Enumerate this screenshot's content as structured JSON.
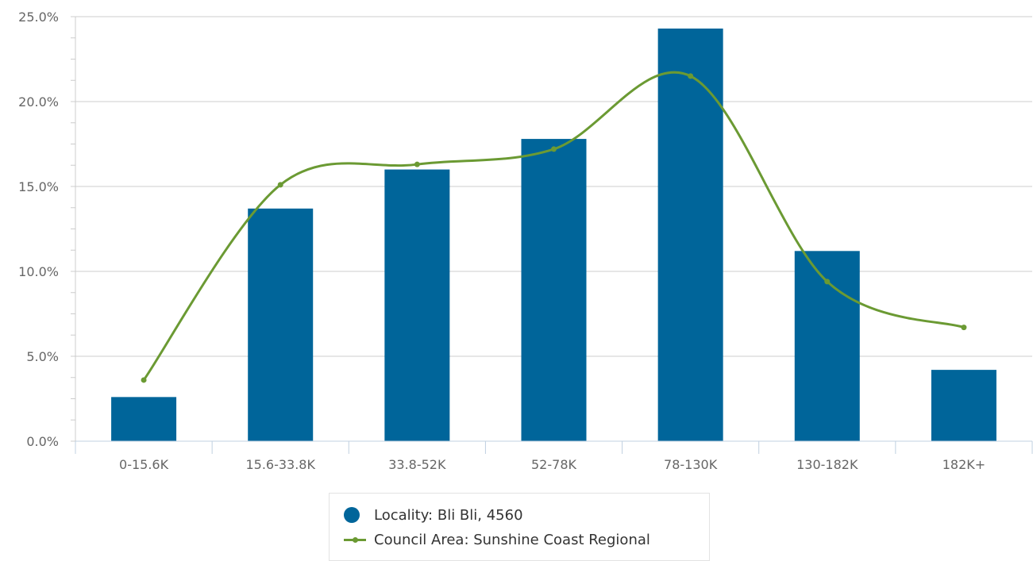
{
  "chart_data": {
    "type": "bar",
    "categories": [
      "0-15.6K",
      "15.6-33.8K",
      "33.8-52K",
      "52-78K",
      "78-130K",
      "130-182K",
      "182K+"
    ],
    "series": [
      {
        "name": "Locality: Bli Bli, 4560",
        "kind": "bar",
        "color": "#00659a",
        "values": [
          2.6,
          13.7,
          16.0,
          17.8,
          24.3,
          11.2,
          4.2
        ]
      },
      {
        "name": "Council Area: Sunshine Coast Regional",
        "kind": "line",
        "smooth": true,
        "color": "#6b9a33",
        "values": [
          3.6,
          15.1,
          16.3,
          17.2,
          21.5,
          9.4,
          6.7
        ]
      }
    ],
    "y_ticks": [
      "0.0%",
      "5.0%",
      "10.0%",
      "15.0%",
      "20.0%",
      "25.0%"
    ],
    "ylim": [
      0,
      25
    ],
    "ylabel": "",
    "xlabel": "",
    "grid": true,
    "legend_position": "bottom-center"
  }
}
